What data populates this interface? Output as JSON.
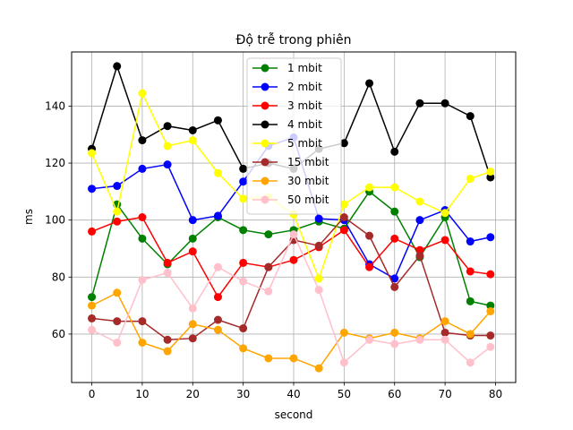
{
  "chart_data": {
    "type": "line",
    "title": "Độ trễ trong phiên",
    "xlabel": "second",
    "ylabel": "ms",
    "xlim": [
      -4,
      84
    ],
    "ylim": [
      43,
      159
    ],
    "xticks": [
      0,
      10,
      20,
      30,
      40,
      50,
      60,
      70,
      80
    ],
    "yticks": [
      60,
      80,
      100,
      120,
      140
    ],
    "grid": true,
    "legend_position": "top-center",
    "x": [
      0,
      5,
      10,
      15,
      20,
      25,
      30,
      35,
      40,
      45,
      50,
      55,
      60,
      65,
      70,
      75,
      79
    ],
    "series": [
      {
        "name": "1 mbit",
        "color": "#008000",
        "values": [
          73,
          105.5,
          93.5,
          84.5,
          93.5,
          101,
          96.5,
          95,
          96.5,
          99.5,
          97,
          110,
          103,
          87,
          101,
          71.5,
          70
        ]
      },
      {
        "name": "2 mbit",
        "color": "#0000ff",
        "values": [
          111,
          112,
          118,
          119.5,
          100,
          101.5,
          113.5,
          126,
          129,
          100.5,
          100,
          84.5,
          79.5,
          100,
          103.5,
          92.5,
          94
        ]
      },
      {
        "name": "3 mbit",
        "color": "#ff0000",
        "values": [
          96,
          99.5,
          101,
          85,
          89,
          73,
          85,
          83.5,
          86,
          90.5,
          96.5,
          83.5,
          93.5,
          89.5,
          93,
          82,
          81
        ]
      },
      {
        "name": "4 mbit",
        "color": "#000000",
        "values": [
          125,
          154,
          128,
          133,
          131.5,
          135,
          118,
          120,
          118,
          125,
          127,
          148,
          124,
          141,
          141,
          136.5,
          115
        ]
      },
      {
        "name": "5 mbit",
        "color": "#ffff00",
        "values": [
          123.5,
          103,
          144.5,
          126,
          128,
          116.5,
          107.5,
          108,
          102,
          79.5,
          105.5,
          111.5,
          111.5,
          106.5,
          102.5,
          114.5,
          117
        ]
      },
      {
        "name": "15 mbit",
        "color": "#a52a2a",
        "values": [
          65.5,
          64.5,
          64.5,
          58,
          58.5,
          65,
          62,
          83.5,
          93,
          91,
          101,
          94.5,
          76.5,
          87.5,
          60.5,
          59.5,
          59.5
        ]
      },
      {
        "name": "30 mbit",
        "color": "#ffa500",
        "values": [
          70,
          74.5,
          57,
          54,
          63.5,
          61.5,
          55,
          51.5,
          51.5,
          48,
          60.5,
          58.5,
          60.5,
          58.5,
          64.5,
          60,
          68
        ]
      },
      {
        "name": "50 mbit",
        "color": "#ffc0cb",
        "values": [
          61.5,
          57,
          79,
          81.5,
          69,
          83.5,
          78.5,
          75,
          95,
          75.5,
          50,
          58,
          56.5,
          58,
          58,
          50,
          55.5
        ]
      }
    ]
  }
}
